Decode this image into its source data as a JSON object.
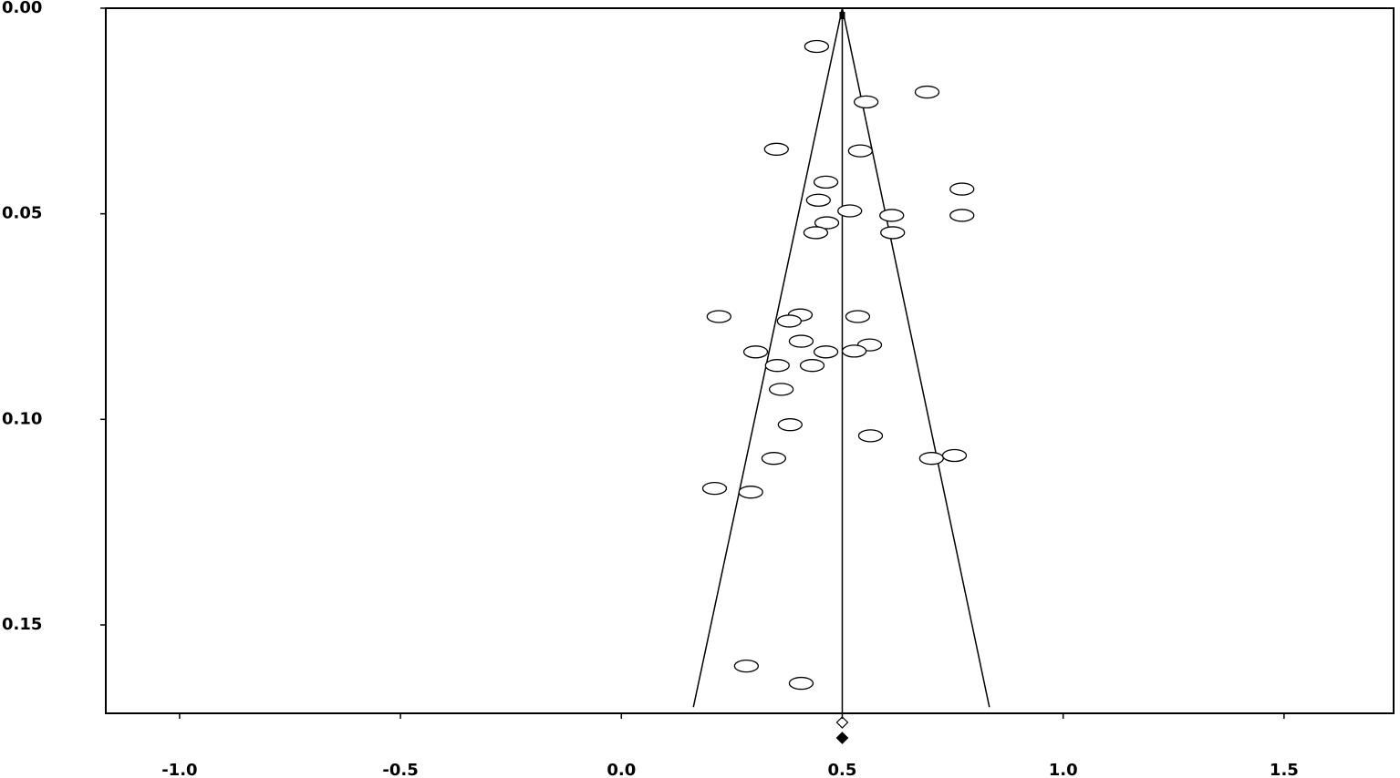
{
  "chart_data": {
    "type": "funnel",
    "xlim": [
      -1.167,
      1.748
    ],
    "ylim": [
      0,
      0.1715
    ],
    "y_inverted": true,
    "xticks": [
      {
        "value": -1,
        "label": "-1.0"
      },
      {
        "value": -0.5,
        "label": "-0.5"
      },
      {
        "value": 0,
        "label": "0.0"
      },
      {
        "value": 0.5,
        "label": "0.5"
      },
      {
        "value": 1,
        "label": "1.0"
      },
      {
        "value": 1.5,
        "label": "1.5"
      }
    ],
    "yticks": [
      {
        "value": 0,
        "label": "0.00"
      },
      0.05,
      {
        "value": 0.1,
        "label": "0.10"
      },
      0.15
    ],
    "points": {
      "x": [
        0.442,
        0.692,
        0.554,
        0.351,
        0.541,
        0.463,
        0.771,
        0.446,
        0.517,
        0.612,
        0.771,
        0.465,
        0.44,
        0.614,
        0.221,
        0.405,
        0.38,
        0.535,
        0.407,
        0.562,
        0.304,
        0.463,
        0.527,
        0.353,
        0.432,
        0.362,
        0.382,
        0.564,
        0.345,
        0.702,
        0.754,
        0.211,
        0.293,
        0.283,
        0.407
      ],
      "y": [
        0.0093,
        0.0204,
        0.0228,
        0.0343,
        0.0347,
        0.0423,
        0.044,
        0.0467,
        0.0493,
        0.0504,
        0.0504,
        0.0522,
        0.0546,
        0.0546,
        0.075,
        0.0746,
        0.0761,
        0.075,
        0.081,
        0.0819,
        0.0836,
        0.0836,
        0.0834,
        0.0869,
        0.0869,
        0.0927,
        0.1013,
        0.104,
        0.1095,
        0.1095,
        0.1088,
        0.1168,
        0.1177,
        0.16,
        0.1642
      ]
    },
    "funnel": {
      "center": 0.5,
      "apex_y": 0,
      "base_y": 0.17,
      "base_x": [
        0.163,
        0.833
      ]
    },
    "summary_markers": [
      {
        "x": 0.5,
        "fill": "none"
      },
      {
        "x": 0.5,
        "fill": "#000"
      }
    ]
  }
}
